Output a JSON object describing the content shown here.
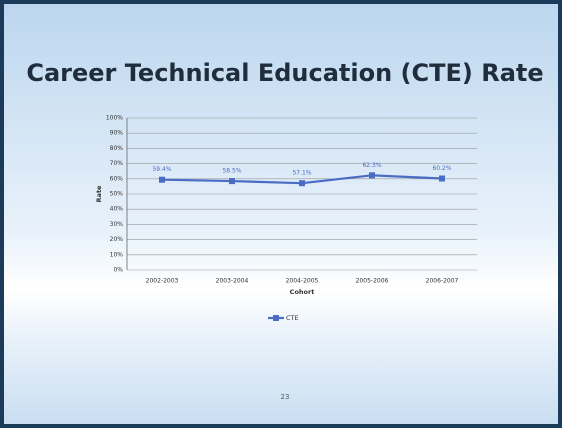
{
  "chart_data": {
    "type": "line",
    "title": "Career Technical Education (CTE) Rate",
    "categories": [
      "2002-2003",
      "2003-2004",
      "2004-2005",
      "2005-2006",
      "2006-2007"
    ],
    "series": [
      {
        "name": "CTE",
        "color": "#4a6cc4",
        "values": [
          59.4,
          58.5,
          57.1,
          62.3,
          60.2
        ],
        "value_labels": [
          "59.4%",
          "58.5%",
          "57.1%",
          "62.3%",
          "60.2%"
        ]
      }
    ],
    "ylim": [
      0,
      100
    ],
    "yticks": [
      {
        "value": 0,
        "label": "0%"
      },
      {
        "value": 10,
        "label": "10%"
      },
      {
        "value": 20,
        "label": "20%"
      },
      {
        "value": 30,
        "label": "30%"
      },
      {
        "value": 40,
        "label": "40%"
      },
      {
        "value": 50,
        "label": "50%"
      },
      {
        "value": 60,
        "label": "60%"
      },
      {
        "value": 70,
        "label": "70%"
      },
      {
        "value": 80,
        "label": "80%"
      },
      {
        "value": 90,
        "label": "90%"
      },
      {
        "value": 100,
        "label": "100%"
      }
    ],
    "xlabel": "Cohort",
    "ylabel": "Rate",
    "grid": true,
    "legend": "bottom"
  },
  "page_number": "23"
}
